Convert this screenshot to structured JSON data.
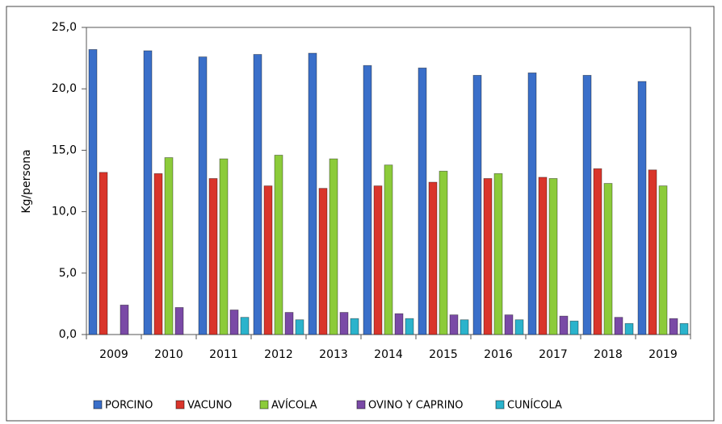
{
  "chart_data": {
    "type": "bar",
    "y_label": "Kg/persona",
    "categories": [
      "2009",
      "2010",
      "2011",
      "2012",
      "2013",
      "2014",
      "2015",
      "2016",
      "2017",
      "2018",
      "2019"
    ],
    "series": [
      {
        "name": "PORCINO",
        "color": "#3a6fc9",
        "values": [
          23.2,
          23.1,
          22.6,
          22.8,
          22.9,
          21.9,
          21.7,
          21.1,
          21.3,
          21.1,
          20.6
        ]
      },
      {
        "name": "VACUNO",
        "color": "#d9352b",
        "values": [
          13.2,
          13.1,
          12.7,
          12.1,
          11.9,
          12.1,
          12.4,
          12.7,
          12.8,
          13.5,
          13.4
        ]
      },
      {
        "name": "AVÍCOLA",
        "color": "#8ccb3a",
        "values": [
          null,
          14.4,
          14.3,
          14.6,
          14.3,
          13.8,
          13.3,
          13.1,
          12.7,
          12.3,
          12.1
        ]
      },
      {
        "name": "OVINO Y CAPRINO",
        "color": "#7a4aa6",
        "values": [
          2.4,
          2.2,
          2.0,
          1.8,
          1.8,
          1.7,
          1.6,
          1.6,
          1.5,
          1.4,
          1.3
        ]
      },
      {
        "name": "CUNÍCOLA",
        "color": "#2bb3cc",
        "values": [
          null,
          null,
          1.4,
          1.2,
          1.3,
          1.3,
          1.2,
          1.2,
          1.1,
          0.9,
          0.9
        ]
      }
    ],
    "ylim": [
      0,
      25
    ],
    "yticks": [
      {
        "value": 0,
        "label": "0,0"
      },
      {
        "value": 5,
        "label": "5,0"
      },
      {
        "value": 10,
        "label": "10,0"
      },
      {
        "value": 15,
        "label": "15,0"
      },
      {
        "value": 20,
        "label": "20,0"
      },
      {
        "value": 25,
        "label": "25,0"
      }
    ],
    "legend": "bottom"
  }
}
